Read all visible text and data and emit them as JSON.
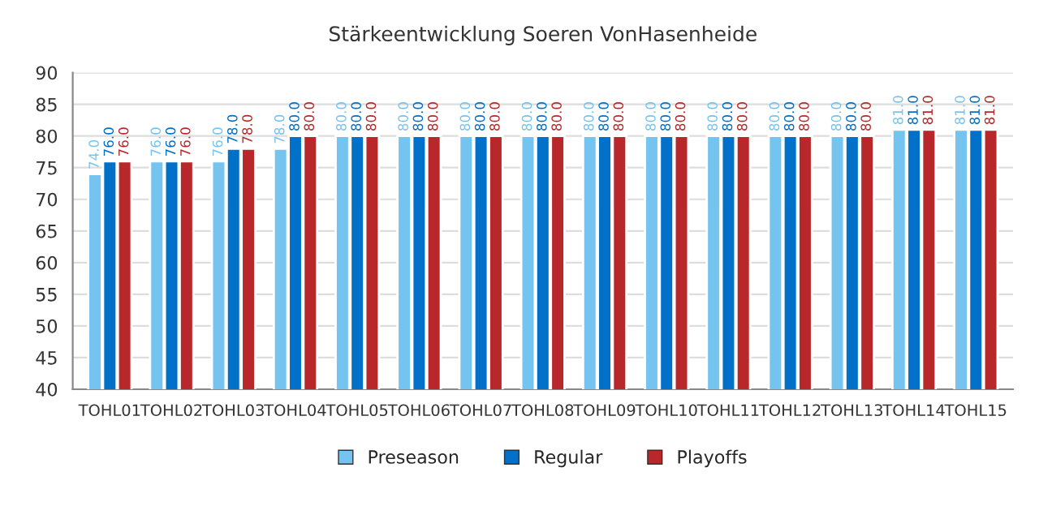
{
  "chart_data": {
    "type": "bar",
    "title": "Stärkeentwicklung Soeren VonHasenheide",
    "categories": [
      "TOHL01",
      "TOHL02",
      "TOHL03",
      "TOHL04",
      "TOHL05",
      "TOHL06",
      "TOHL07",
      "TOHL08",
      "TOHL09",
      "TOHL10",
      "TOHL11",
      "TOHL12",
      "TOHL13",
      "TOHL14",
      "TOHL15"
    ],
    "series": [
      {
        "name": "Preseason",
        "color": "#75c3ef",
        "values": [
          74,
          76,
          76,
          78,
          80,
          80,
          80,
          80,
          80,
          80,
          80,
          80,
          80,
          81,
          81
        ],
        "value_labels": [
          "74.0",
          "76.0",
          "76.0",
          "78.0",
          "80.0",
          "80.0",
          "80.0",
          "80.0",
          "80.0",
          "80.0",
          "80.0",
          "80.0",
          "80.0",
          "81.0",
          "81.0"
        ]
      },
      {
        "name": "Regular",
        "color": "#0070c8",
        "values": [
          76,
          76,
          78,
          80,
          80,
          80,
          80,
          80,
          80,
          80,
          80,
          80,
          80,
          81,
          81
        ],
        "value_labels": [
          "76.0",
          "76.0",
          "78.0",
          "80.0",
          "80.0",
          "80.0",
          "80.0",
          "80.0",
          "80.0",
          "80.0",
          "80.0",
          "80.0",
          "80.0",
          "81.0",
          "81.0"
        ]
      },
      {
        "name": "Playoffs",
        "color": "#b8282a",
        "values": [
          76,
          76,
          78,
          80,
          80,
          80,
          80,
          80,
          80,
          80,
          80,
          80,
          80,
          81,
          81
        ],
        "value_labels": [
          "76.0",
          "76.0",
          "78.0",
          "80.0",
          "80.0",
          "80.0",
          "80.0",
          "80.0",
          "80.0",
          "80.0",
          "80.0",
          "80.0",
          "80.0",
          "81.0",
          "81.0"
        ]
      }
    ],
    "ylim": [
      40,
      90
    ],
    "yticks": [
      40,
      45,
      50,
      55,
      60,
      65,
      70,
      75,
      80,
      85,
      90
    ],
    "grid": "y",
    "legend": "bottom"
  }
}
